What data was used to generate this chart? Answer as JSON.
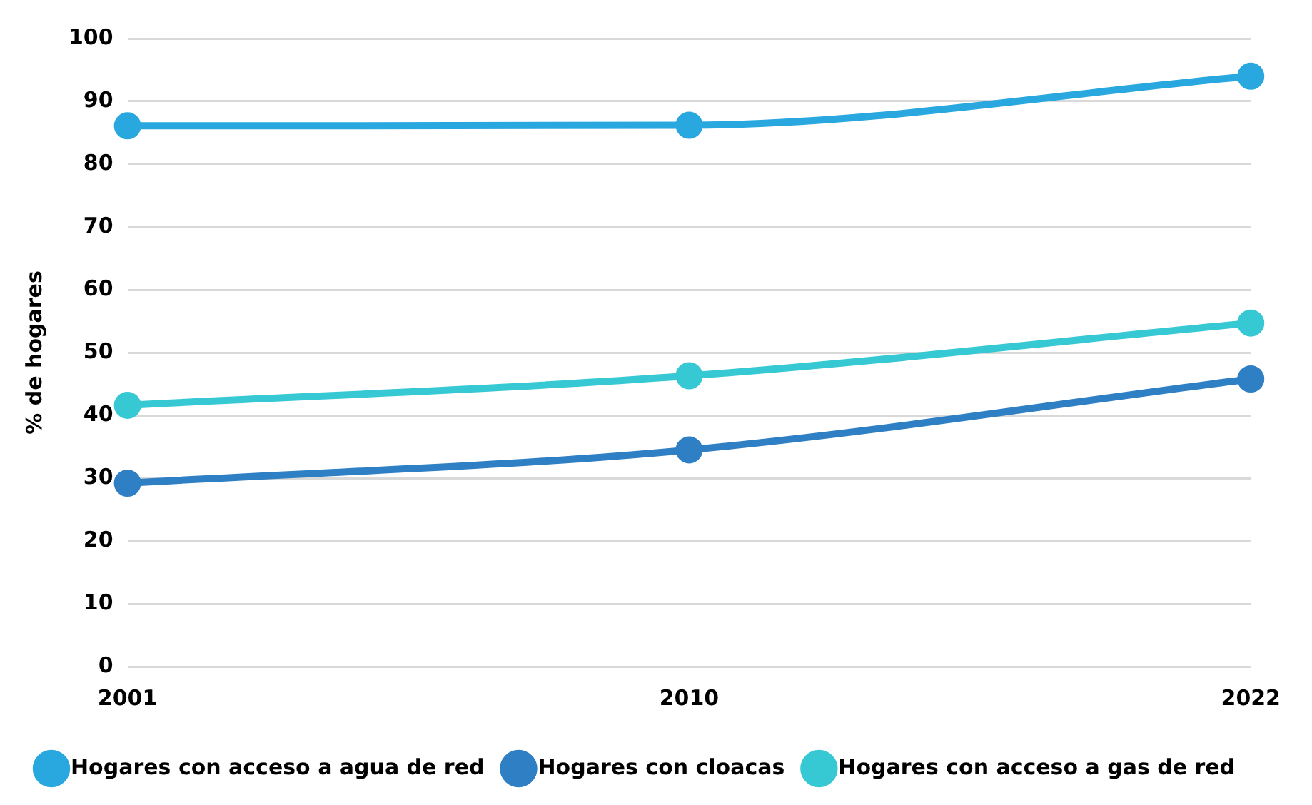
{
  "chart_data": {
    "type": "line",
    "ylabel": "% de hogares",
    "categories": [
      "2001",
      "2010",
      "2022"
    ],
    "series": [
      {
        "name": "Hogares con acceso a agua de red",
        "color": "#29a8e0",
        "values": [
          86.1,
          86.2,
          94
        ]
      },
      {
        "name": "Hogares con cloacas",
        "color": "#2e7fc4",
        "values": [
          29.2,
          34.5,
          45.8
        ]
      },
      {
        "name": "Hogares con acceso a gas de red",
        "color": "#36c9d4",
        "values": [
          41.6,
          46.3,
          54.7
        ]
      }
    ],
    "ylim": [
      0,
      100
    ],
    "yticks": [
      0,
      10,
      20,
      30,
      40,
      50,
      60,
      70,
      80,
      90,
      100
    ],
    "grid": "y",
    "legend": "bottom",
    "marker": "circle",
    "line_style": "solid"
  }
}
